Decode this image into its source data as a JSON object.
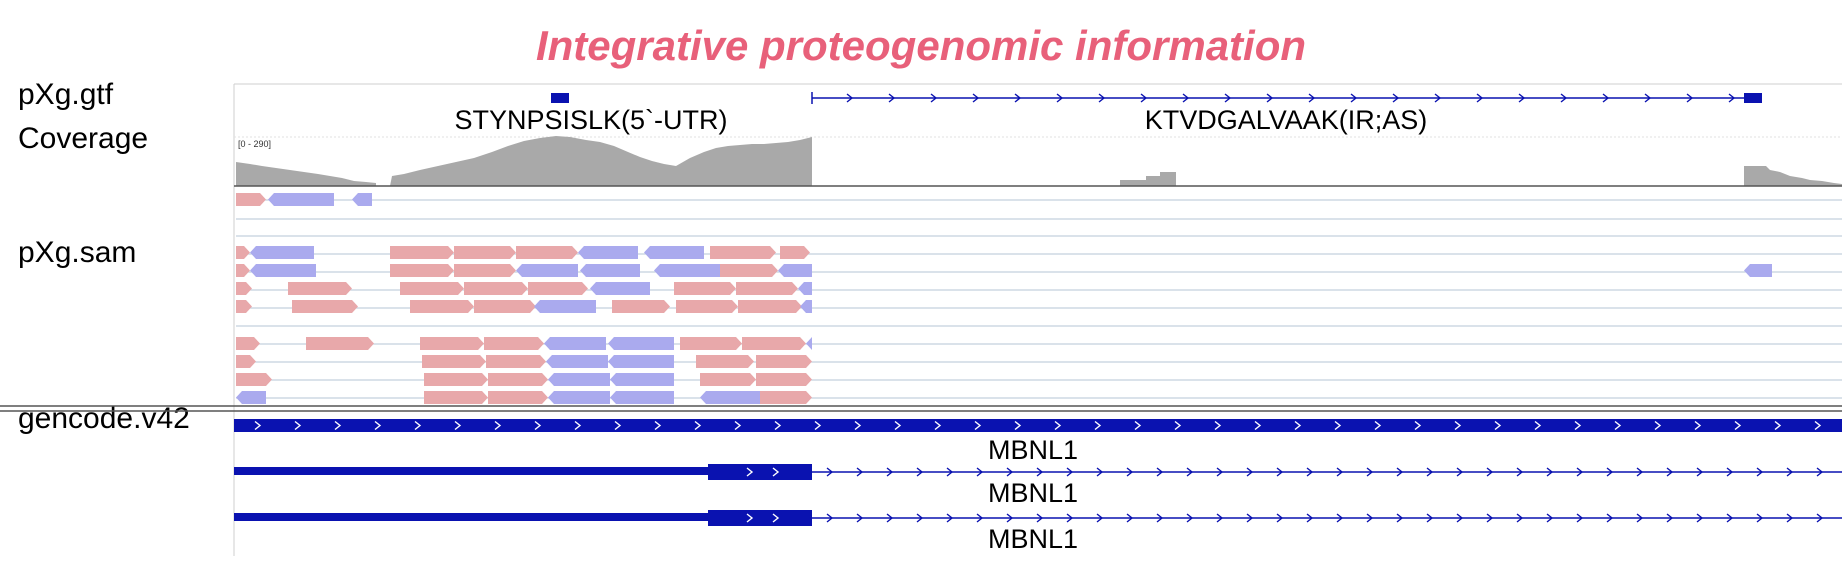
{
  "title": "Integrative proteogenomic information",
  "tracks": {
    "gtf_label": "pXg.gtf",
    "coverage_label": "Coverage",
    "sam_label": "pXg.sam",
    "gencode_label": "gencode.v42"
  },
  "coverage_range": "[0 - 290]",
  "peptides": [
    {
      "name": "STYNPSISLK(5`-UTR)"
    },
    {
      "name": "KTVDGALVAAK(IR;AS)"
    }
  ],
  "genes": [
    "MBNL1",
    "MBNL1",
    "MBNL1"
  ],
  "colors": {
    "title": "#e8607a",
    "feature": "#0a12b0",
    "coverage": "#a9a9a9",
    "read_forward": "#e8a8aa",
    "read_reverse": "#aaaaee",
    "row_line": "#b4c6d6"
  }
}
